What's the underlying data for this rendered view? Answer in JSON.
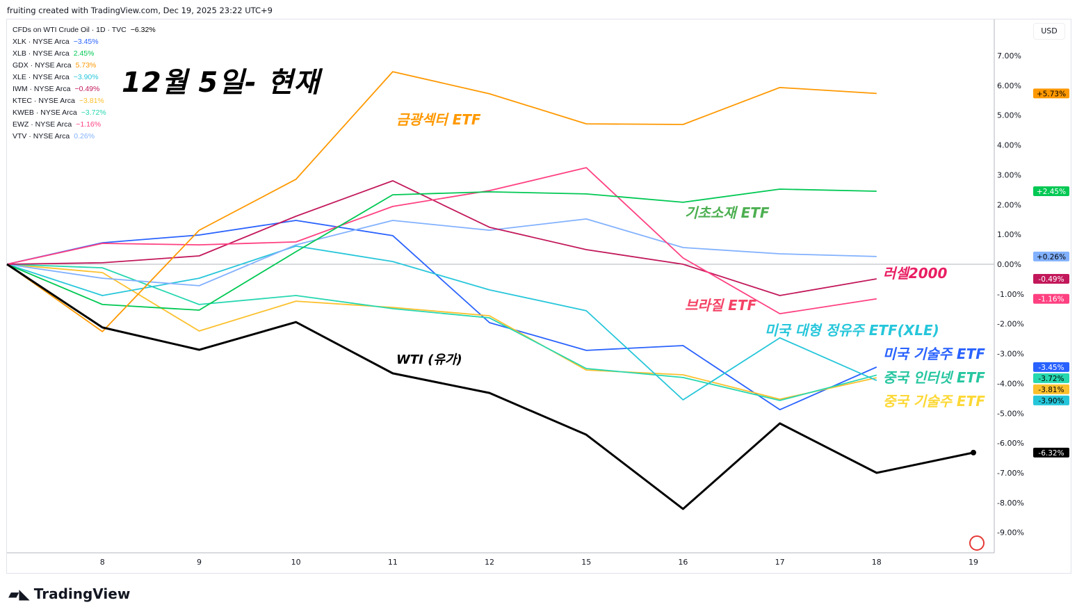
{
  "header": "fruiting created with TradingView.com, Dec 19, 2025 23:22 UTC+9",
  "big_title": "12월 5일- 현재",
  "currency": "USD",
  "logo": "TradingView",
  "legend": [
    {
      "label": "CFDs on WTI Crude Oil · 1D · TVC",
      "value": "−6.32%",
      "color": "#000000"
    },
    {
      "label": "XLK · NYSE Arca",
      "value": "−3.45%",
      "color": "#2962ff"
    },
    {
      "label": "XLB · NYSE Arca",
      "value": "2.45%",
      "color": "#00c853"
    },
    {
      "label": "GDX · NYSE Arca",
      "value": "5.73%",
      "color": "#ff9800"
    },
    {
      "label": "XLE · NYSE Arca",
      "value": "−3.90%",
      "color": "#26c6da"
    },
    {
      "label": "IWM · NYSE Arca",
      "value": "−0.49%",
      "color": "#c2185b"
    },
    {
      "label": "KTEC · NYSE Arca",
      "value": "−3.81%",
      "color": "#fbc02d"
    },
    {
      "label": "KWEB · NYSE Arca",
      "value": "−3.72%",
      "color": "#26d7b0"
    },
    {
      "label": "EWZ · NYSE Arca",
      "value": "−1.16%",
      "color": "#ff4081"
    },
    {
      "label": "VTV · NYSE Arca",
      "value": "0.26%",
      "color": "#82b1ff"
    }
  ],
  "annotations": [
    {
      "text": "금광섹터 ETF",
      "color": "#ff9800"
    },
    {
      "text": "기초소재  ETF",
      "color": "#4caf50"
    },
    {
      "text": "러셀2000",
      "color": "#e91e63"
    },
    {
      "text": "브라질 ETF",
      "color": "#f44366"
    },
    {
      "text": "미국 대형 정유주 ETF(XLE)",
      "color": "#26c6da"
    },
    {
      "text": "미국 기술주 ETF",
      "color": "#2962ff"
    },
    {
      "text": "중국 인터넷 ETF",
      "color": "#26c6a0"
    },
    {
      "text": "중국 기술주 ETF",
      "color": "#fdd835"
    },
    {
      "text": "WTI (유가)",
      "color": "#000000"
    }
  ],
  "chart_data": {
    "type": "line",
    "x": [
      "5",
      "8",
      "9",
      "10",
      "11",
      "12",
      "15",
      "16",
      "17",
      "18",
      "19"
    ],
    "x_tick_labels": [
      "8",
      "9",
      "10",
      "11",
      "12",
      "15",
      "16",
      "17",
      "18",
      "19"
    ],
    "ylim": [
      -9.8,
      7.8
    ],
    "y_ticks": [
      "7.00%",
      "6.00%",
      "5.00%",
      "4.00%",
      "3.00%",
      "2.00%",
      "1.00%",
      "0.00%",
      "-1.00%",
      "-2.00%",
      "-3.00%",
      "-4.00%",
      "-5.00%",
      "-6.00%",
      "-7.00%",
      "-8.00%",
      "-9.00%"
    ],
    "y_tick_values": [
      7,
      6,
      5,
      4,
      3,
      2,
      1,
      0,
      -1,
      -2,
      -3,
      -4,
      -5,
      -6,
      -7,
      -8,
      -9
    ],
    "series": [
      {
        "name": "WTI",
        "color": "#000000",
        "badge": "-6.32%",
        "values": [
          0,
          -2.12,
          -2.87,
          -1.94,
          -3.66,
          -4.32,
          -5.72,
          -8.21,
          -5.34,
          -7.0,
          -6.32
        ]
      },
      {
        "name": "GDX",
        "color": "#ff9800",
        "badge": "+5.73%",
        "values": [
          0,
          -2.26,
          1.14,
          2.85,
          6.46,
          5.72,
          4.71,
          4.69,
          5.93,
          5.73,
          null
        ]
      },
      {
        "name": "XLB",
        "color": "#00c853",
        "badge": "+2.45%",
        "values": [
          0,
          -1.35,
          -1.54,
          0.42,
          2.33,
          2.43,
          2.36,
          2.08,
          2.52,
          2.45,
          null
        ]
      },
      {
        "name": "EWZ",
        "color": "#ff4081",
        "badge": "-1.16%",
        "values": [
          0,
          0.7,
          0.65,
          0.75,
          1.94,
          2.47,
          3.24,
          0.21,
          -1.66,
          -1.16,
          null
        ]
      },
      {
        "name": "IWM",
        "color": "#c2185b",
        "badge": "-0.49%",
        "values": [
          0,
          0.05,
          0.28,
          1.61,
          2.8,
          1.24,
          0.49,
          0,
          -1.05,
          -0.49,
          null
        ]
      },
      {
        "name": "VTV",
        "color": "#82b1ff",
        "badge": "+0.26%",
        "values": [
          0,
          -0.47,
          -0.72,
          0.65,
          1.47,
          1.14,
          1.52,
          0.56,
          0.35,
          0.26,
          null
        ]
      },
      {
        "name": "XLE",
        "color": "#26c6da",
        "badge": "-3.90%",
        "values": [
          0,
          -1.05,
          -0.47,
          0.61,
          0.09,
          -0.86,
          -1.56,
          -4.55,
          -2.47,
          -3.9,
          null
        ]
      },
      {
        "name": "KWEB",
        "color": "#26d7b0",
        "badge": "-3.72%",
        "values": [
          0,
          -0.12,
          -1.35,
          -1.05,
          -1.49,
          -1.8,
          -3.5,
          -3.8,
          -4.57,
          -3.72,
          null
        ]
      },
      {
        "name": "KTEC",
        "color": "#fbc02d",
        "badge": "-3.81%",
        "values": [
          0,
          -0.28,
          -2.24,
          -1.24,
          -1.45,
          -1.73,
          -3.55,
          -3.71,
          -4.53,
          -3.81,
          null
        ]
      },
      {
        "name": "XLK",
        "color": "#2962ff",
        "badge": "-3.45%",
        "values": [
          0,
          0.72,
          0.98,
          1.47,
          0.96,
          -1.96,
          -2.89,
          -2.73,
          -4.88,
          -3.45,
          null
        ]
      }
    ]
  }
}
